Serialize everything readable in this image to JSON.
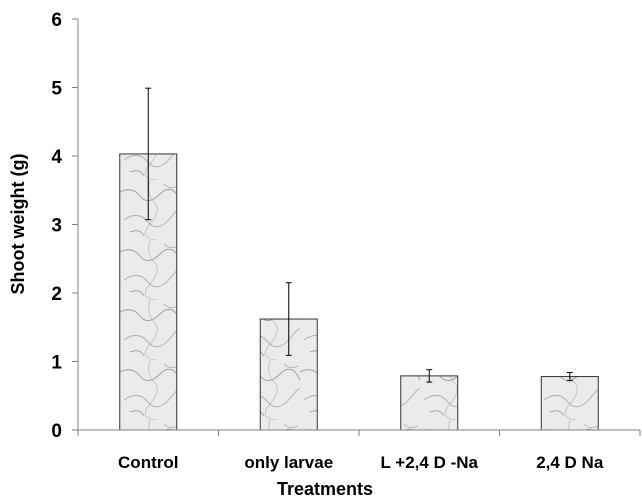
{
  "chart_data": {
    "type": "bar",
    "title": "",
    "xlabel": "Treatments",
    "ylabel": "Shoot  weight  (g)",
    "categories": [
      "Control",
      "only larvae",
      "L +2,4 D -Na",
      "2,4 D Na"
    ],
    "values": [
      4.03,
      1.62,
      0.79,
      0.78
    ],
    "error": [
      0.96,
      0.53,
      0.09,
      0.06
    ],
    "ylim": [
      0,
      6
    ],
    "yticks": [
      0,
      1,
      2,
      3,
      4,
      5,
      6
    ],
    "grid": false,
    "legend": "none",
    "colors": {
      "bar_fill": "#ebebeb",
      "bar_stroke": "#333333",
      "marble_vein": "#9a9a9a",
      "axis": "#808080"
    }
  }
}
